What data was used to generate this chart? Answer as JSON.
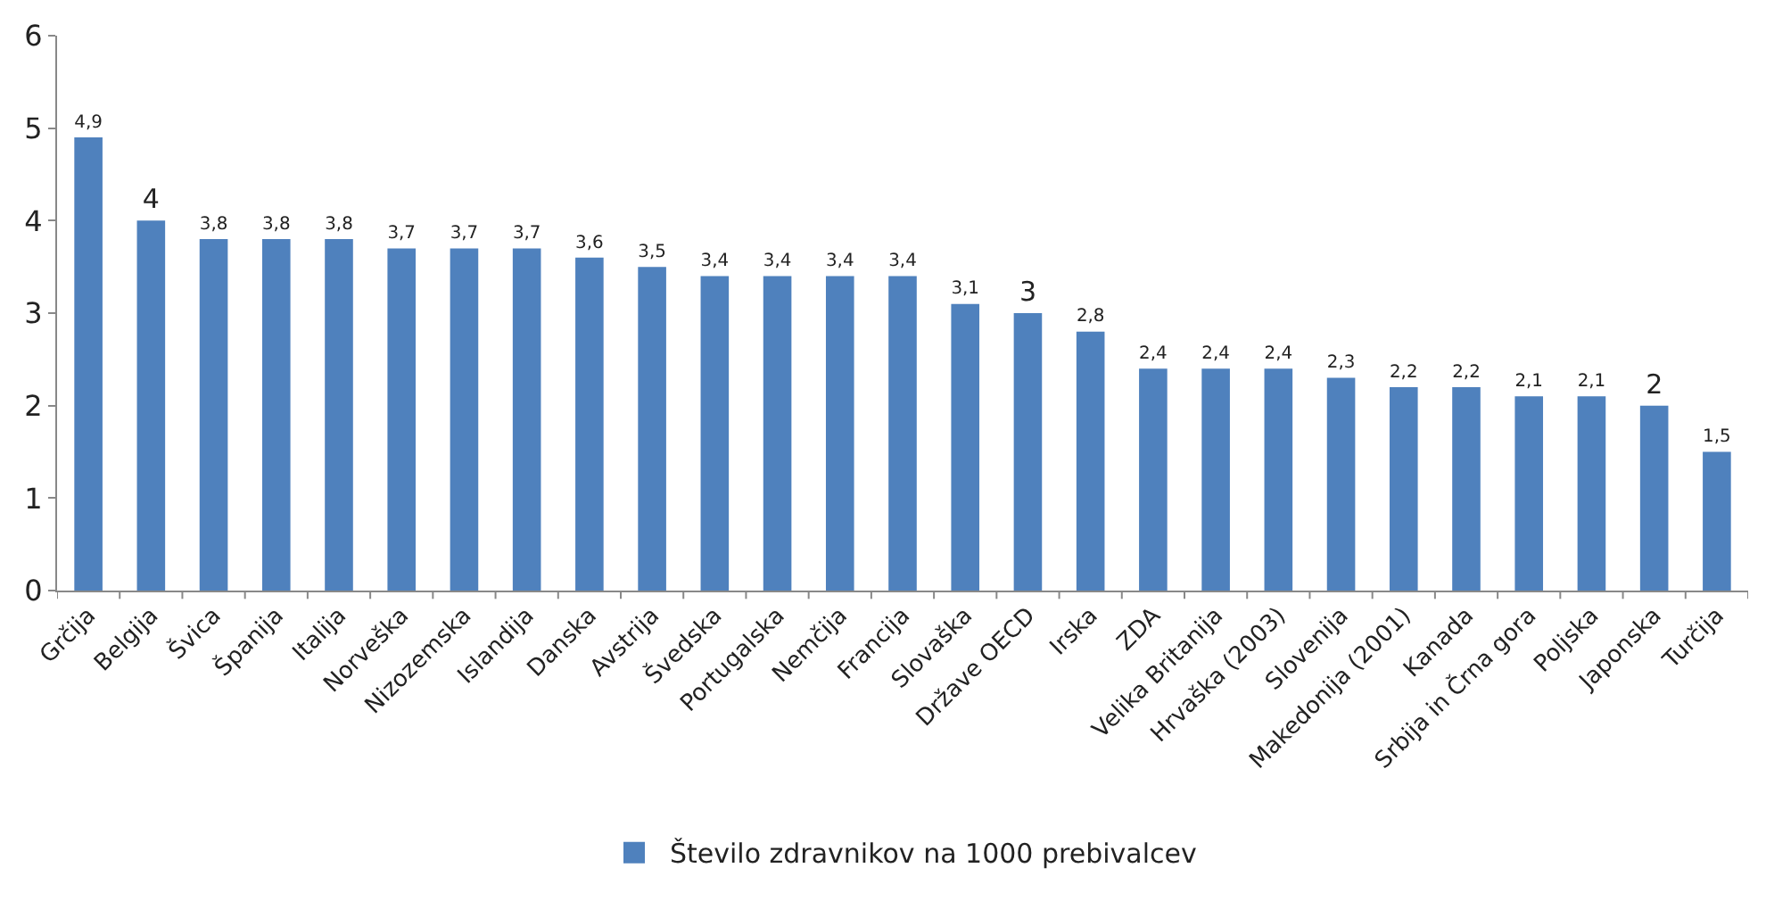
{
  "chart_data": {
    "type": "bar",
    "categories": [
      "Grčija",
      "Belgija",
      "Švica",
      "Španija",
      "Italija",
      "Norveška",
      "Nizozemska",
      "Islandija",
      "Danska",
      "Avstrija",
      "Švedska",
      "Portugalska",
      "Nemčija",
      "Francija",
      "Slovaška",
      "Države OECD",
      "Irska",
      "ZDA",
      "Velika Britanija",
      "Hrvaška (2003)",
      "Slovenija",
      "Makedonija (2001)",
      "Kanada",
      "Srbija in Črna gora",
      "Poljska",
      "Japonska",
      "Turčija"
    ],
    "series": [
      {
        "name": "Število zdravnikov na 1000 prebivalcev",
        "color": "#4f81bd",
        "values": [
          4.9,
          4,
          3.8,
          3.8,
          3.8,
          3.7,
          3.7,
          3.7,
          3.6,
          3.5,
          3.4,
          3.4,
          3.4,
          3.4,
          3.1,
          3,
          2.8,
          2.4,
          2.4,
          2.4,
          2.3,
          2.2,
          2.2,
          2.1,
          2.1,
          2,
          1.5
        ],
        "value_labels": [
          "4,9",
          "4",
          "3,8",
          "3,8",
          "3,8",
          "3,7",
          "3,7",
          "3,7",
          "3,6",
          "3,5",
          "3,4",
          "3,4",
          "3,4",
          "3,4",
          "3,1",
          "3",
          "2,8",
          "2,4",
          "2,4",
          "2,4",
          "2,3",
          "2,2",
          "2,2",
          "2,1",
          "2,1",
          "2",
          "1,5"
        ]
      }
    ],
    "ylim": [
      0,
      6
    ],
    "yticks": [
      0,
      1,
      2,
      3,
      4,
      5,
      6
    ],
    "grid": false,
    "legend": "bottom"
  }
}
